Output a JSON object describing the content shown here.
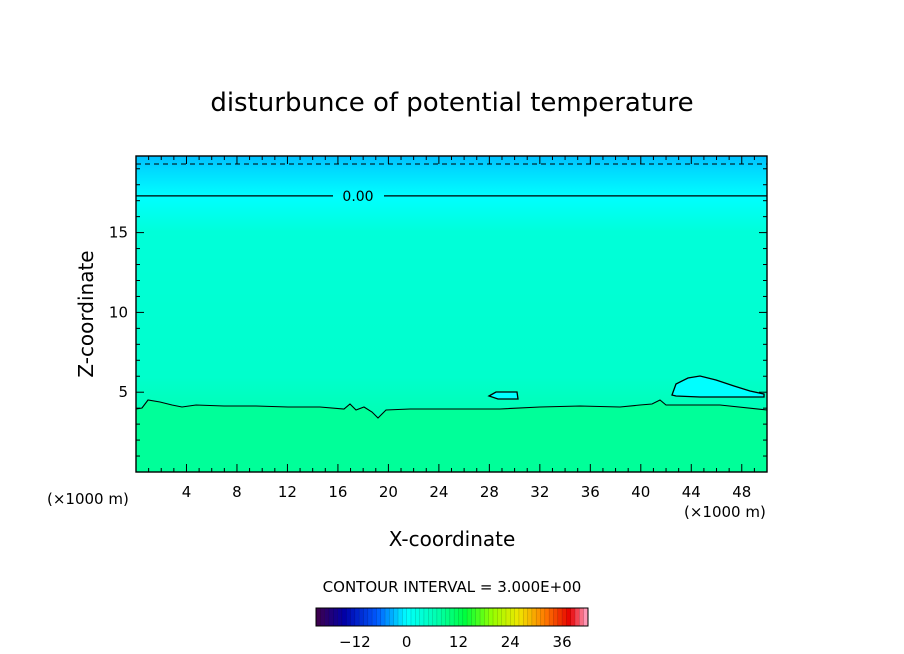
{
  "chart_data": {
    "type": "heatmap",
    "title": "disturbunce of potential temperature",
    "xlabel": "X-coordinate",
    "ylabel": "Z-coordinate",
    "x_unit": "(×1000 m)",
    "z_unit": "(×1000 m)",
    "xlim": [
      0,
      50
    ],
    "ylim": [
      0,
      19.8
    ],
    "x_ticks": [
      4,
      8,
      12,
      16,
      20,
      24,
      28,
      32,
      36,
      40,
      44,
      48
    ],
    "y_ticks": [
      5,
      10,
      15
    ],
    "contour_interval_text": "CONTOUR INTERVAL = 3.000E+00",
    "contour_labels": [
      "0.00"
    ],
    "colorbar": {
      "min": -21,
      "max": 42,
      "ticks": [
        -12,
        0,
        12,
        24,
        36
      ]
    },
    "field_estimate": {
      "lower_layer_value": 3,
      "middle_layer_value": 1,
      "upper_layer_value": -3,
      "top_layer_value": -5,
      "zero_contour_z": 17.3,
      "top_dashed_contour_z": 19.3,
      "lower_boundary_z": 4.1
    },
    "colors": {
      "top": "#00c8ff",
      "upper": "#00ffff",
      "middle": "#00ffcc",
      "lower": "#00ff90"
    }
  }
}
